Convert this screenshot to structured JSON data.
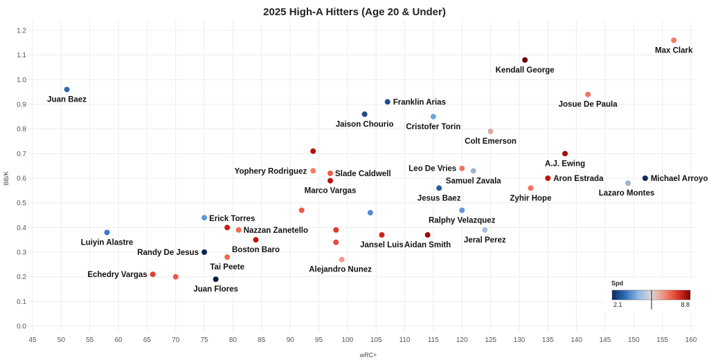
{
  "chart_data": {
    "type": "scatter",
    "title": "2025 High-A Hitters (Age 20 & Under)",
    "xlabel": "wRC+",
    "ylabel": "BB/K",
    "xlim": [
      45,
      160
    ],
    "ylim": [
      0,
      1.2
    ],
    "x_ticks": [
      45,
      50,
      55,
      60,
      65,
      70,
      75,
      80,
      85,
      90,
      95,
      100,
      105,
      110,
      115,
      120,
      125,
      130,
      135,
      140,
      145,
      150,
      155,
      160
    ],
    "y_ticks": [
      0.0,
      0.1,
      0.2,
      0.3,
      0.4,
      0.5,
      0.6,
      0.7,
      0.8,
      0.9,
      1.0,
      1.1,
      1.2
    ],
    "y_tick_labels": [
      "0.0",
      "0.1",
      "0.2",
      "0.3",
      "0.4",
      "0.5",
      "0.6",
      "0.7",
      "0.8",
      "0.9",
      "1.0",
      "1.1",
      "1.2"
    ],
    "grid": true,
    "color_scale": {
      "title": "Spd",
      "min_label": "2.1",
      "max_label": "8.8",
      "min": 2.1,
      "max": 8.8,
      "colors": [
        "#0a2a5e",
        "#2f6fb7",
        "#8fb8e3",
        "#d8d8d8",
        "#f08c7a",
        "#e23a2a",
        "#7d0000"
      ],
      "position": "bottom-right"
    },
    "points": [
      {
        "label": "Juan Baez",
        "x": 51,
        "y": 0.96,
        "color": "#2e68ad"
      },
      {
        "label": "Luiyin Alastre",
        "x": 58,
        "y": 0.38,
        "color": "#3d79c2"
      },
      {
        "label": "Echedry Vargas",
        "x": 66,
        "y": 0.21,
        "color": "#e0402e"
      },
      {
        "label": "",
        "x": 70,
        "y": 0.2,
        "color": "#ec5a45"
      },
      {
        "label": "Erick Torres",
        "x": 75,
        "y": 0.44,
        "color": "#5a9ad6"
      },
      {
        "label": "Randy De Jesus",
        "x": 75,
        "y": 0.3,
        "color": "#0c2452"
      },
      {
        "label": "Juan Flores",
        "x": 77,
        "y": 0.19,
        "color": "#071a44"
      },
      {
        "label": "",
        "x": 79,
        "y": 0.4,
        "color": "#cc1b14"
      },
      {
        "label": "Tai Peete",
        "x": 79,
        "y": 0.28,
        "color": "#f06a50"
      },
      {
        "label": "Nazzan Zanetello",
        "x": 81,
        "y": 0.39,
        "color": "#f26b52"
      },
      {
        "label": "Boston Baro",
        "x": 84,
        "y": 0.35,
        "color": "#c5140e"
      },
      {
        "label": "",
        "x": 92,
        "y": 0.47,
        "color": "#ec5a45"
      },
      {
        "label": "",
        "x": 94,
        "y": 0.71,
        "color": "#b40f0b"
      },
      {
        "label": "Yophery Rodriguez",
        "x": 94,
        "y": 0.63,
        "color": "#f47a62"
      },
      {
        "label": "Slade Caldwell",
        "x": 97,
        "y": 0.62,
        "color": "#f0604a"
      },
      {
        "label": "Marco Vargas",
        "x": 97,
        "y": 0.59,
        "color": "#b81210"
      },
      {
        "label": "",
        "x": 98,
        "y": 0.39,
        "color": "#e0352a"
      },
      {
        "label": "",
        "x": 98,
        "y": 0.34,
        "color": "#e8483a"
      },
      {
        "label": "Alejandro Nunez",
        "x": 99,
        "y": 0.27,
        "color": "#f59a85"
      },
      {
        "label": "Jaison Chourio",
        "x": 103,
        "y": 0.86,
        "color": "#1c4a86"
      },
      {
        "label": "",
        "x": 104,
        "y": 0.46,
        "color": "#4f8fd0"
      },
      {
        "label": "Jansel Luis",
        "x": 106,
        "y": 0.37,
        "color": "#d21f18"
      },
      {
        "label": "Franklin Arias",
        "x": 107,
        "y": 0.91,
        "color": "#1d4a8e"
      },
      {
        "label": "Aidan Smith",
        "x": 114,
        "y": 0.37,
        "color": "#9a0a0a"
      },
      {
        "label": "Cristofer Torin",
        "x": 115,
        "y": 0.85,
        "color": "#6aa8e0"
      },
      {
        "label": "Jesus Baez",
        "x": 116,
        "y": 0.56,
        "color": "#2a5fa5"
      },
      {
        "label": "Leo De Vries",
        "x": 120,
        "y": 0.64,
        "color": "#f07460"
      },
      {
        "label": "Ralphy Velazquez",
        "x": 120,
        "y": 0.47,
        "color": "#5d97d6"
      },
      {
        "label": "Samuel Zavala",
        "x": 122,
        "y": 0.63,
        "color": "#a2b3c9"
      },
      {
        "label": "Jeral Perez",
        "x": 124,
        "y": 0.39,
        "color": "#a9bfd8"
      },
      {
        "label": "Colt Emerson",
        "x": 125,
        "y": 0.79,
        "color": "#dcaa9e"
      },
      {
        "label": "Kendall George",
        "x": 131,
        "y": 1.08,
        "color": "#6a0606"
      },
      {
        "label": "Zyhir Hope",
        "x": 132,
        "y": 0.56,
        "color": "#f2735c"
      },
      {
        "label": "Aron Estrada",
        "x": 135,
        "y": 0.6,
        "color": "#c2130e"
      },
      {
        "label": "A.J. Ewing",
        "x": 138,
        "y": 0.7,
        "color": "#a80c0a"
      },
      {
        "label": "Josue De Paula",
        "x": 142,
        "y": 0.94,
        "color": "#f27560"
      },
      {
        "label": "Lazaro Montes",
        "x": 149,
        "y": 0.58,
        "color": "#a3b5cb"
      },
      {
        "label": "Michael Arroyo",
        "x": 152,
        "y": 0.6,
        "color": "#0b2a5c"
      },
      {
        "label": "Max Clark",
        "x": 157,
        "y": 1.16,
        "color": "#f47a62"
      }
    ]
  }
}
